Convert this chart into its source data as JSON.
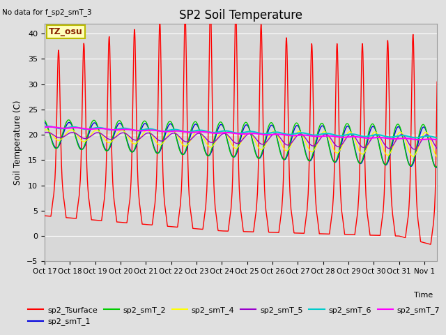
{
  "title": "SP2 Soil Temperature",
  "ylabel": "Soil Temperature (C)",
  "xlabel": "Time",
  "no_data_text": "No data for f_sp2_smT_3",
  "tz_label": "TZ_osu",
  "ylim": [
    -5,
    42
  ],
  "yticks": [
    -5,
    0,
    5,
    10,
    15,
    20,
    25,
    30,
    35,
    40
  ],
  "xlim": [
    0,
    15.5
  ],
  "xtick_labels": [
    "Oct 17",
    "Oct 18",
    "Oct 19",
    "Oct 20",
    "Oct 21",
    "Oct 22",
    "Oct 23",
    "Oct 24",
    "Oct 25",
    "Oct 26",
    "Oct 27",
    "Oct 28",
    "Oct 29",
    "Oct 30",
    "Oct 31",
    "Nov 1"
  ],
  "fig_bg": "#e0e0e0",
  "plot_bg": "#d8d8d8",
  "series_colors": {
    "sp2_Tsurface": "#ff0000",
    "sp2_smT_1": "#0000dd",
    "sp2_smT_2": "#00cc00",
    "sp2_smT_4": "#ffff00",
    "sp2_smT_5": "#9900cc",
    "sp2_smT_6": "#00cccc",
    "sp2_smT_7": "#ff00ff"
  },
  "legend_order": [
    "sp2_Tsurface",
    "sp2_smT_1",
    "sp2_smT_2",
    "sp2_smT_4",
    "sp2_smT_5",
    "sp2_smT_6",
    "sp2_smT_7"
  ]
}
